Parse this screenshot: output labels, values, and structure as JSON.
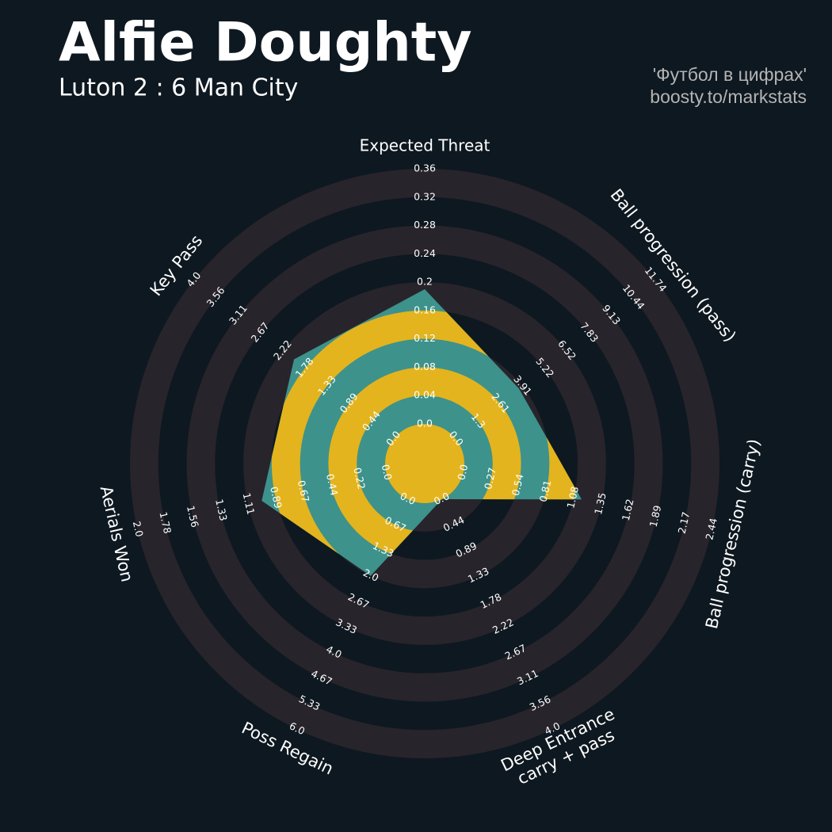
{
  "chart_data": {
    "type": "radar",
    "title": "Alfie Doughty",
    "subtitle": "Luton 2 : 6 Man City",
    "credits": [
      "'Футбол в цифрах'",
      "boosty.to/markstats"
    ],
    "categories": [
      "Expected Threat",
      "Ball progression (pass)",
      "Ball progression (carry)",
      [
        "Deep Entrance",
        "carry + pass"
      ],
      "Poss Regain",
      "Aerials Won",
      "Key Pass"
    ],
    "values": [
      0.19,
      3.72,
      1.16,
      0,
      2.0,
      1.0,
      2.0
    ],
    "colors": {
      "background": "#0e1820",
      "rings": "#28242b",
      "radar": "#3d928c",
      "radar_rings": "#e3b41e"
    },
    "axes": [
      {
        "lim": [
          0,
          0.36
        ],
        "ticks": [
          {
            "value": 0,
            "label": "0.0"
          },
          0.04,
          0.08,
          0.12,
          0.16,
          0.2,
          0.24,
          0.28,
          0.32,
          0.36
        ]
      },
      {
        "lim": [
          0,
          11.74
        ],
        "ticks": [
          {
            "value": 0,
            "label": "0.0"
          },
          1.3,
          2.61,
          3.91,
          5.22,
          6.52,
          7.83,
          9.13,
          10.44,
          11.74
        ]
      },
      {
        "lim": [
          0,
          2.44
        ],
        "ticks": [
          {
            "value": 0,
            "label": "0.0"
          },
          0.27,
          0.54,
          0.81,
          1.08,
          1.35,
          1.62,
          1.89,
          2.17,
          2.44
        ]
      },
      {
        "lim": [
          0,
          4
        ],
        "ticks": [
          {
            "value": 0,
            "label": "0.0"
          },
          0.44,
          0.89,
          1.33,
          1.78,
          2.22,
          2.67,
          3.11,
          3.56,
          {
            "value": 4,
            "label": "4.0"
          }
        ]
      },
      {
        "lim": [
          0,
          6
        ],
        "ticks": [
          {
            "value": 0,
            "label": "0.0"
          },
          0.67,
          1.33,
          {
            "value": 2,
            "label": "2.0"
          },
          2.67,
          3.33,
          {
            "value": 4,
            "label": "4.0"
          },
          4.67,
          5.33,
          {
            "value": 6,
            "label": "6.0"
          }
        ]
      },
      {
        "lim": [
          0,
          2
        ],
        "ticks": [
          {
            "value": 0,
            "label": "0.0"
          },
          0.22,
          0.44,
          0.67,
          0.89,
          1.11,
          1.33,
          1.56,
          1.78,
          {
            "value": 2,
            "label": "2.0"
          }
        ]
      },
      {
        "lim": [
          0,
          4
        ],
        "ticks": [
          {
            "value": 0,
            "label": "0.0"
          },
          0.44,
          0.89,
          1.33,
          1.78,
          2.22,
          2.67,
          3.11,
          3.56,
          {
            "value": 4,
            "label": "4.0"
          }
        ]
      }
    ]
  }
}
